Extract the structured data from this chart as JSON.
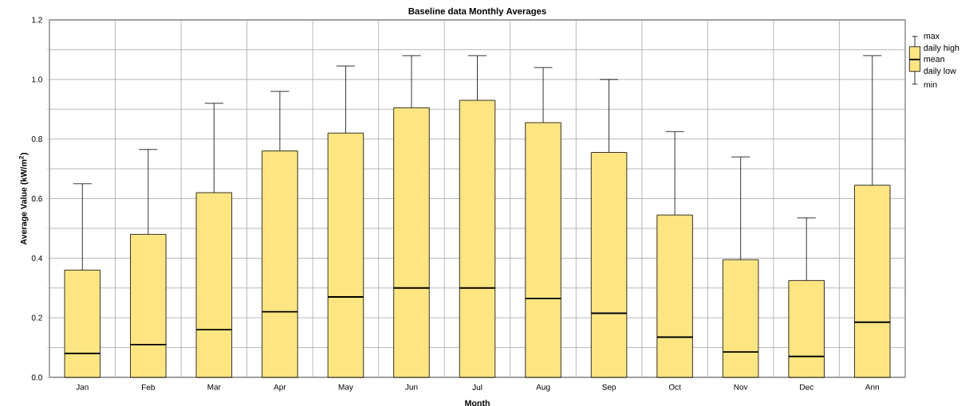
{
  "chart_data": {
    "type": "box",
    "title": "Baseline data Monthly Averages",
    "xlabel": "Month",
    "ylabel": "Average Value (kW/m$^{2}$)",
    "categories": [
      "Jan",
      "Feb",
      "Mar",
      "Apr",
      "May",
      "Jun",
      "Jul",
      "Aug",
      "Sep",
      "Oct",
      "Nov",
      "Dec",
      "Ann"
    ],
    "color": "#fde582",
    "boxes": [
      {
        "low": 0,
        "q1": 0,
        "median": 0.08,
        "q3": 0.36,
        "high": 0.65
      },
      {
        "low": 0,
        "q1": 0,
        "median": 0.11,
        "q3": 0.48,
        "high": 0.765
      },
      {
        "low": 0,
        "q1": 0,
        "median": 0.16,
        "q3": 0.62,
        "high": 0.92
      },
      {
        "low": 0,
        "q1": 0,
        "median": 0.22,
        "q3": 0.76,
        "high": 0.96
      },
      {
        "low": 0,
        "q1": 0,
        "median": 0.27,
        "q3": 0.82,
        "high": 1.045
      },
      {
        "low": 0,
        "q1": 0,
        "median": 0.3,
        "q3": 0.905,
        "high": 1.08
      },
      {
        "low": 0,
        "q1": 0,
        "median": 0.3,
        "q3": 0.93,
        "high": 1.08
      },
      {
        "low": 0,
        "q1": 0,
        "median": 0.265,
        "q3": 0.855,
        "high": 1.04
      },
      {
        "low": 0,
        "q1": 0,
        "median": 0.215,
        "q3": 0.755,
        "high": 1.0
      },
      {
        "low": 0,
        "q1": 0,
        "median": 0.135,
        "q3": 0.545,
        "high": 0.825
      },
      {
        "low": 0,
        "q1": 0,
        "median": 0.085,
        "q3": 0.395,
        "high": 0.74
      },
      {
        "low": 0,
        "q1": 0,
        "median": 0.07,
        "q3": 0.325,
        "high": 0.535
      },
      {
        "low": 0,
        "q1": 0,
        "median": 0.185,
        "q3": 0.645,
        "high": 1.08
      }
    ],
    "ylim": [
      0,
      1.2
    ],
    "yticks": [
      {
        "value": 0,
        "label": "0.0"
      },
      {
        "value": 0.1,
        "label": null
      },
      0.2,
      {
        "value": 0.3,
        "label": null
      },
      0.4,
      {
        "value": 0.5,
        "label": null
      },
      0.6,
      {
        "value": 0.7,
        "label": null
      },
      0.8,
      {
        "value": 0.9,
        "label": null
      },
      {
        "value": 1.0,
        "label": "1.0"
      },
      {
        "value": 1.1,
        "label": null
      },
      1.2
    ],
    "grid": true,
    "annotations": [
      "max",
      "daily high",
      "mean",
      "daily low",
      "min"
    ]
  }
}
